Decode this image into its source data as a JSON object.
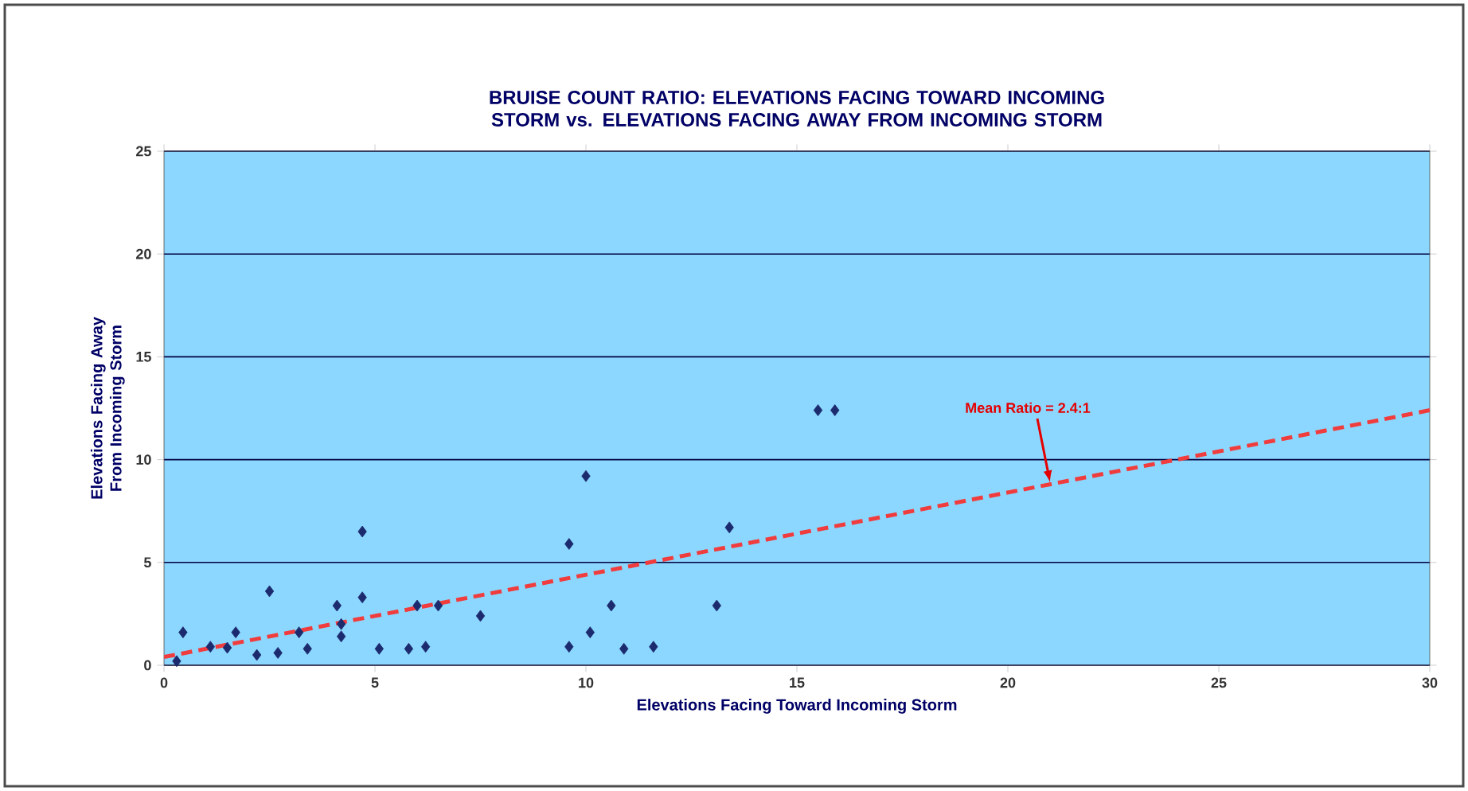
{
  "chart_data": {
    "type": "scatter",
    "title": "BRUISE COUNT RATIO: ELEVATIONS FACING TOWARD INCOMING STORM vs. ELEVATIONS FACING AWAY FROM INCOMING STORM",
    "xlabel": "Elevations Facing Toward Incoming Storm",
    "ylabel": "Elevations Facing Away From Incoming Storm",
    "xlim": [
      0,
      30
    ],
    "ylim": [
      0,
      25
    ],
    "xticks": [
      0,
      5,
      10,
      15,
      20,
      25,
      30
    ],
    "yticks": [
      0,
      5,
      10,
      15,
      20,
      25
    ],
    "grid": "y",
    "legend": false,
    "marker": "diamond",
    "series": [
      {
        "color": "#1c2a6e",
        "x": [
          0.45,
          0.3,
          4.7,
          2.5,
          4.7,
          4.1,
          6.0,
          6.5,
          1.7,
          3.2,
          4.2,
          1.1,
          1.5,
          2.2,
          2.7,
          3.4,
          5.1,
          5.8,
          6.2,
          4.2,
          10.0,
          9.6,
          13.4,
          7.5,
          10.6,
          13.1,
          10.1,
          9.6,
          10.9,
          11.6,
          15.5,
          15.9
        ],
        "values": [
          1.6,
          0.2,
          6.5,
          3.6,
          3.3,
          2.9,
          2.9,
          2.9,
          1.6,
          1.6,
          1.4,
          0.9,
          0.85,
          0.5,
          0.6,
          0.8,
          0.8,
          0.8,
          0.9,
          2.0,
          9.2,
          5.9,
          6.7,
          2.4,
          2.9,
          2.9,
          1.6,
          0.9,
          0.8,
          0.9,
          12.4,
          12.4
        ]
      },
      {
        "type": "line",
        "color": "#f03c3c",
        "line_style": "dashed",
        "marker": "none",
        "x": [
          0,
          30
        ],
        "values": [
          0.4,
          12.4
        ]
      }
    ],
    "annotations": [
      {
        "text": "Mean Ratio = 2.4:1",
        "x": 21.0,
        "y": 8.9
      }
    ]
  }
}
